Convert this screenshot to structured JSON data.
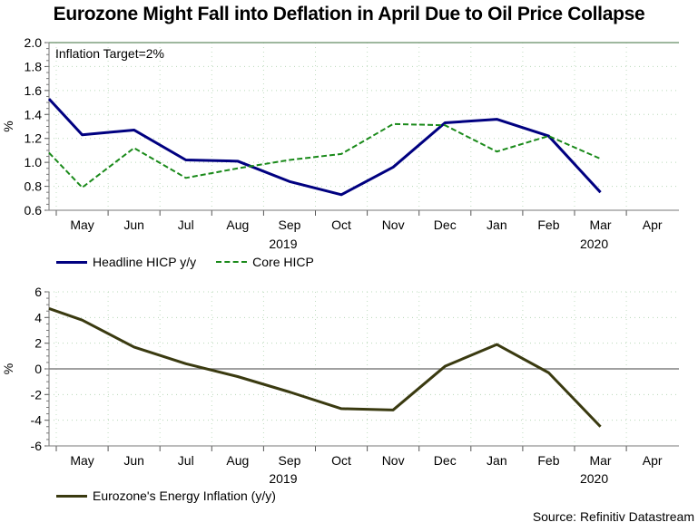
{
  "title": "Eurozone Might Fall into Deflation in April Due to Oil Price Collapse",
  "source": "Source: Refinitiv Datastream",
  "colors": {
    "headline": "#000080",
    "core": "#1a8a1a",
    "energy": "#3a3a10",
    "target_line": "#7f9f7f",
    "zero_line": "#808080"
  },
  "chart_data": [
    {
      "type": "line",
      "title": "",
      "annotation": "Inflation Target=2%",
      "ylabel": "%",
      "xlabel": "",
      "ylim": [
        0.6,
        2.0
      ],
      "yticks": [
        "2.0",
        "1.8",
        "1.6",
        "1.4",
        "1.2",
        "1.0",
        "0.8",
        "0.6"
      ],
      "ytick_values": [
        2.0,
        1.8,
        1.6,
        1.4,
        1.2,
        1.0,
        0.8,
        0.6
      ],
      "x": [
        "Apr 2019",
        "May 2019",
        "Jun 2019",
        "Jul 2019",
        "Aug 2019",
        "Sep 2019",
        "Oct 2019",
        "Nov 2019",
        "Dec 2019",
        "Jan 2020",
        "Feb 2020",
        "Mar 2020"
      ],
      "month_labels": [
        "May",
        "Jun",
        "Jul",
        "Aug",
        "Sep",
        "Oct",
        "Nov",
        "Dec",
        "Jan",
        "Feb",
        "Mar",
        "Apr"
      ],
      "year_labels": [
        {
          "label": "2019",
          "month_index": 4.5
        },
        {
          "label": "2020",
          "month_index": 10.5
        }
      ],
      "grid": true,
      "legend_position": "bottom-left",
      "reference_line": 2.0,
      "series": [
        {
          "name": "Headline HICP y/y",
          "style": "solid",
          "values": [
            1.53,
            1.23,
            1.27,
            1.02,
            1.01,
            0.84,
            0.73,
            0.96,
            1.33,
            1.36,
            1.22,
            0.75
          ]
        },
        {
          "name": "Core HICP",
          "style": "dashed",
          "values": [
            1.08,
            0.79,
            1.12,
            0.87,
            0.95,
            1.02,
            1.07,
            1.32,
            1.31,
            1.09,
            1.22,
            1.03
          ]
        }
      ]
    },
    {
      "type": "line",
      "title": "",
      "ylabel": "%",
      "xlabel": "",
      "ylim": [
        -6,
        6
      ],
      "yticks": [
        "6",
        "4",
        "2",
        "0",
        "-2",
        "-4",
        "-6"
      ],
      "ytick_values": [
        6,
        4,
        2,
        0,
        -2,
        -4,
        -6
      ],
      "x": [
        "Apr 2019",
        "May 2019",
        "Jun 2019",
        "Jul 2019",
        "Aug 2019",
        "Sep 2019",
        "Oct 2019",
        "Nov 2019",
        "Dec 2019",
        "Jan 2020",
        "Feb 2020",
        "Mar 2020"
      ],
      "month_labels": [
        "May",
        "Jun",
        "Jul",
        "Aug",
        "Sep",
        "Oct",
        "Nov",
        "Dec",
        "Jan",
        "Feb",
        "Mar",
        "Apr"
      ],
      "year_labels": [
        {
          "label": "2019",
          "month_index": 4.5
        },
        {
          "label": "2020",
          "month_index": 10.5
        }
      ],
      "grid": true,
      "legend_position": "bottom-left",
      "reference_line": 0,
      "series": [
        {
          "name": "Eurozone's Energy Inflation (y/y)",
          "style": "solid",
          "values": [
            4.7,
            3.8,
            1.7,
            0.4,
            -0.6,
            -1.8,
            -3.1,
            -3.2,
            0.2,
            1.9,
            -0.3,
            -4.5
          ]
        }
      ]
    }
  ]
}
